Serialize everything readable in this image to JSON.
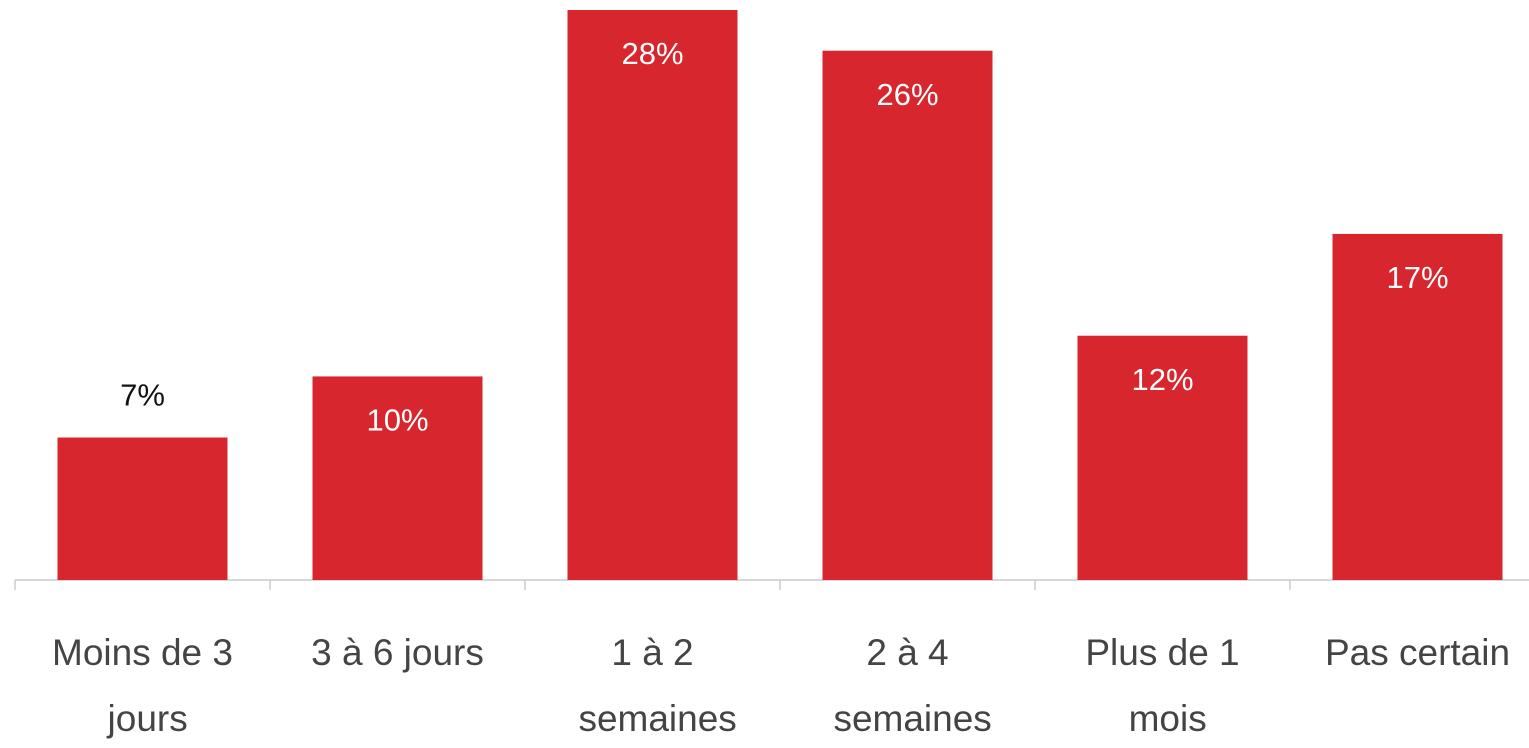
{
  "chart_data": {
    "type": "bar",
    "categories": [
      "Moins de 3 jours",
      "3 à 6 jours",
      "1 à 2 semaines",
      "2 à 4 semaines",
      "Plus de 1 mois",
      "Pas certain"
    ],
    "values": [
      7,
      10,
      28,
      26,
      12,
      17
    ],
    "value_labels": [
      "7%",
      "10%",
      "28%",
      "26%",
      "12%",
      "17%"
    ],
    "color": "#d7262e"
  }
}
